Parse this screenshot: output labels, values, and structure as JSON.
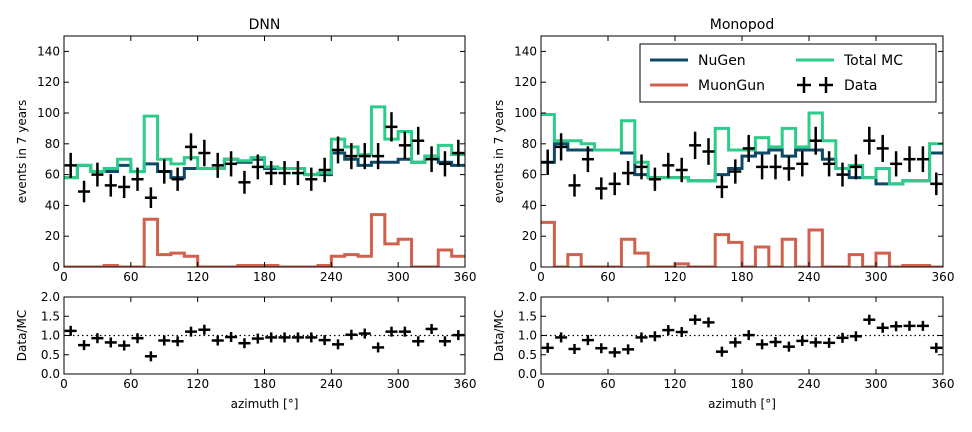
{
  "colors": {
    "nugen": "#0d4a66",
    "muongun": "#d0614c",
    "total_mc": "#2ecc8a",
    "data": "#000000"
  },
  "chart_data": [
    {
      "type": "line",
      "panel": "top-left",
      "title": "DNN",
      "xlabel": "",
      "ylabel": "events in 7 years",
      "xlim": [
        0,
        360
      ],
      "ylim": [
        0,
        150
      ],
      "yticks": [
        "0",
        "20",
        "40",
        "60",
        "80",
        "100",
        "120",
        "140"
      ],
      "xticks": [
        "0",
        "60",
        "120",
        "180",
        "240",
        "300",
        "360"
      ],
      "bin_edges": [
        0,
        12,
        24,
        36,
        48,
        60,
        72,
        84,
        96,
        108,
        120,
        132,
        144,
        156,
        168,
        180,
        192,
        204,
        216,
        228,
        240,
        252,
        264,
        276,
        288,
        300,
        312,
        324,
        336,
        348,
        360
      ],
      "series": [
        {
          "name": "NuGen",
          "style": "step",
          "values": [
            58,
            66,
            62,
            62,
            66,
            62,
            67,
            62,
            58,
            64,
            64,
            64,
            70,
            68,
            70,
            64,
            64,
            64,
            60,
            60,
            74,
            70,
            66,
            68,
            68,
            70,
            68,
            72,
            68,
            66
          ]
        },
        {
          "name": "MuonGun",
          "style": "step",
          "values": [
            0,
            0,
            0,
            1,
            0,
            0,
            31,
            8,
            9,
            7,
            0,
            0,
            0,
            1,
            1,
            1,
            0,
            0,
            0,
            1,
            7,
            8,
            7,
            34,
            15,
            18,
            0,
            0,
            11,
            7
          ]
        },
        {
          "name": "Total MC",
          "style": "step",
          "values": [
            58,
            66,
            62,
            64,
            70,
            62,
            98,
            70,
            67,
            71,
            64,
            64,
            70,
            69,
            71,
            65,
            64,
            64,
            60,
            61,
            83,
            78,
            73,
            104,
            83,
            88,
            68,
            72,
            79,
            73
          ]
        },
        {
          "name": "Data",
          "style": "errorbar",
          "values": [
            66,
            49,
            60,
            53,
            52,
            57,
            45,
            62,
            57,
            78,
            74,
            66,
            67,
            55,
            65,
            61,
            61,
            61,
            57,
            63,
            76,
            72,
            72,
            72,
            91,
            79,
            82,
            70,
            67,
            74
          ]
        }
      ]
    },
    {
      "type": "line",
      "panel": "top-right",
      "title": "Monopod",
      "xlabel": "",
      "ylabel": "events in 7 years",
      "xlim": [
        0,
        360
      ],
      "ylim": [
        0,
        150
      ],
      "yticks": [
        "0",
        "20",
        "40",
        "60",
        "80",
        "100",
        "120",
        "140"
      ],
      "xticks": [
        "0",
        "60",
        "120",
        "180",
        "240",
        "300",
        "360"
      ],
      "legend": {
        "position": "top-right",
        "columns": 2
      },
      "bin_edges": [
        0,
        12,
        24,
        36,
        48,
        60,
        72,
        84,
        96,
        108,
        120,
        132,
        144,
        156,
        168,
        180,
        192,
        204,
        216,
        228,
        240,
        252,
        264,
        276,
        288,
        300,
        312,
        324,
        336,
        348,
        360
      ],
      "series": [
        {
          "name": "NuGen",
          "style": "step",
          "values": [
            68,
            80,
            76,
            76,
            76,
            76,
            74,
            60,
            58,
            58,
            58,
            56,
            56,
            60,
            64,
            72,
            74,
            76,
            72,
            76,
            76,
            70,
            64,
            58,
            58,
            54,
            54,
            56,
            56,
            74
          ]
        },
        {
          "name": "MuonGun",
          "style": "step",
          "values": [
            29,
            0,
            8,
            0,
            0,
            0,
            18,
            9,
            0,
            0,
            2,
            0,
            0,
            21,
            16,
            0,
            13,
            0,
            18,
            0,
            24,
            0,
            0,
            8,
            0,
            9,
            0,
            1,
            1,
            0
          ]
        },
        {
          "name": "Total MC",
          "style": "step",
          "values": [
            99,
            82,
            82,
            80,
            76,
            76,
            95,
            68,
            58,
            58,
            58,
            56,
            56,
            90,
            76,
            76,
            84,
            78,
            90,
            78,
            100,
            82,
            64,
            66,
            58,
            64,
            54,
            56,
            56,
            80
          ]
        },
        {
          "name": "Data",
          "style": "errorbar",
          "values": [
            68,
            78,
            53,
            70,
            51,
            54,
            61,
            65,
            57,
            66,
            63,
            79,
            75,
            52,
            62,
            77,
            65,
            65,
            64,
            67,
            82,
            67,
            60,
            65,
            82,
            77,
            67,
            70,
            70,
            54
          ]
        }
      ]
    },
    {
      "type": "scatter",
      "panel": "bottom-left",
      "title": "",
      "xlabel": "azimuth [°]",
      "ylabel": "Data/MC",
      "xlim": [
        0,
        360
      ],
      "ylim": [
        0,
        2
      ],
      "yticks": [
        "0.0",
        "0.5",
        "1.0",
        "1.5",
        "2.0"
      ],
      "xticks": [
        "0",
        "60",
        "120",
        "180",
        "240",
        "300",
        "360"
      ],
      "reference_line": 1.0,
      "series": [
        {
          "name": "Data/MC",
          "values": [
            1.12,
            0.75,
            0.93,
            0.82,
            0.74,
            0.93,
            0.46,
            0.87,
            0.85,
            1.1,
            1.15,
            0.87,
            0.96,
            0.8,
            0.92,
            0.95,
            0.95,
            0.95,
            0.95,
            0.88,
            0.77,
            1.02,
            1.05,
            0.69,
            1.1,
            1.1,
            0.85,
            1.17,
            0.85,
            1.01
          ]
        }
      ]
    },
    {
      "type": "scatter",
      "panel": "bottom-right",
      "title": "",
      "xlabel": "azimuth [°]",
      "ylabel": "Data/MC",
      "xlim": [
        0,
        360
      ],
      "ylim": [
        0,
        2
      ],
      "yticks": [
        "0.0",
        "0.5",
        "1.0",
        "1.5",
        "2.0"
      ],
      "xticks": [
        "0",
        "60",
        "120",
        "180",
        "240",
        "300",
        "360"
      ],
      "reference_line": 1.0,
      "series": [
        {
          "name": "Data/MC",
          "values": [
            0.68,
            0.95,
            0.65,
            0.88,
            0.67,
            0.56,
            0.64,
            0.95,
            0.98,
            1.14,
            1.09,
            1.41,
            1.34,
            0.58,
            0.82,
            1.01,
            0.77,
            0.83,
            0.71,
            0.86,
            0.82,
            0.81,
            0.94,
            0.98,
            1.41,
            1.2,
            1.24,
            1.25,
            1.25,
            0.68
          ]
        }
      ]
    }
  ]
}
